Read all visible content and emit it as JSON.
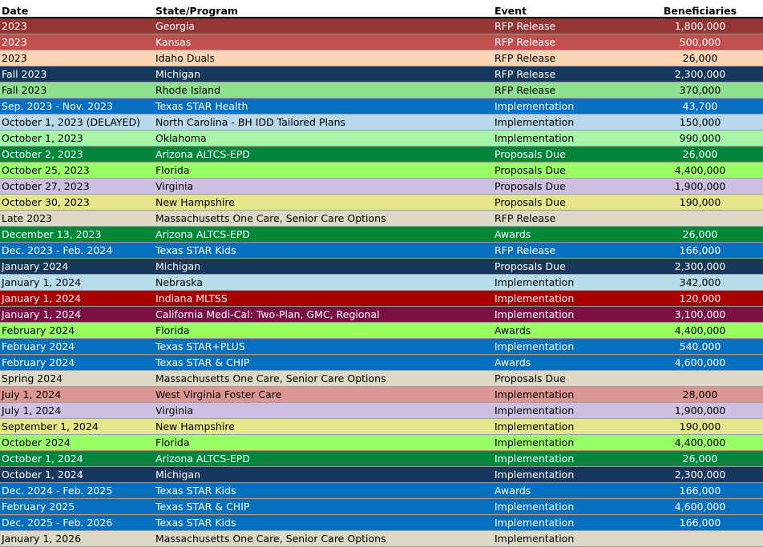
{
  "headers": {
    "date": "Date",
    "state": "State/Program",
    "event": "Event",
    "beneficiaries": "Beneficiaries"
  },
  "rows": [
    {
      "date": "2023",
      "state": "Georgia",
      "event": "RFP Release",
      "ben": "1,800,000",
      "bg": "#963634",
      "fg": "#ffffff"
    },
    {
      "date": "2023",
      "state": "Kansas",
      "event": "RFP Release",
      "ben": "500,000",
      "bg": "#c0504d",
      "fg": "#ffffff"
    },
    {
      "date": "2023",
      "state": "Idaho Duals",
      "event": "RFP Release",
      "ben": "26,000",
      "bg": "#fcd5b4",
      "fg": "#000000"
    },
    {
      "date": "Fall 2023",
      "state": "Michigan",
      "event": "RFP Release",
      "ben": "2,300,000",
      "bg": "#17375d",
      "fg": "#ffffff"
    },
    {
      "date": "Fall 2023",
      "state": "Rhode Island",
      "event": "RFP Release",
      "ben": "370,000",
      "bg": "#8ee08e",
      "fg": "#000000"
    },
    {
      "date": "Sep. 2023 - Nov. 2023",
      "state": "Texas STAR Health",
      "event": "Implementation",
      "ben": "43,700",
      "bg": "#0570c0",
      "fg": "#ffffff"
    },
    {
      "date": "October 1, 2023 (DELAYED)",
      "state": "North Carolina -  BH IDD Tailored Plans",
      "event": "Implementation",
      "ben": "150,000",
      "bg": "#b7d7ea",
      "fg": "#000000"
    },
    {
      "date": "October 1, 2023",
      "state": "Oklahoma",
      "event": "Implementation",
      "ben": "990,000",
      "bg": "#a8f5a8",
      "fg": "#000000"
    },
    {
      "date": "October 2, 2023",
      "state": "Arizona ALTCS-EPD",
      "event": "Proposals Due",
      "ben": "26,000",
      "bg": "#00873c",
      "fg": "#ffffff"
    },
    {
      "date": "October 25, 2023",
      "state": "Florida",
      "event": "Proposals Due",
      "ben": "4,400,000",
      "bg": "#99ff66",
      "fg": "#000000"
    },
    {
      "date": "October 27, 2023",
      "state": "Virginia",
      "event": "Proposals Due",
      "ben": "1,900,000",
      "bg": "#cdbfe0",
      "fg": "#000000"
    },
    {
      "date": "October 30, 2023",
      "state": "New Hampshire",
      "event": "Proposals Due",
      "ben": "190,000",
      "bg": "#e6e68a",
      "fg": "#000000"
    },
    {
      "date": "Late 2023",
      "state": "Massachusetts One Care, Senior Care Options",
      "event": "RFP Release",
      "ben": "",
      "bg": "#ddd9c4",
      "fg": "#000000"
    },
    {
      "date": "December 13, 2023",
      "state": "Arizona ALTCS-EPD",
      "event": "Awards",
      "ben": "26,000",
      "bg": "#00873c",
      "fg": "#ffffff"
    },
    {
      "date": "Dec. 2023 - Feb. 2024",
      "state": "Texas STAR Kids",
      "event": "RFP Release",
      "ben": "166,000",
      "bg": "#0570c0",
      "fg": "#ffffff"
    },
    {
      "date": "January 2024",
      "state": "Michigan",
      "event": "Proposals Due",
      "ben": "2,300,000",
      "bg": "#17375d",
      "fg": "#ffffff"
    },
    {
      "date": "January 1, 2024",
      "state": "Nebraska",
      "event": "Implementation",
      "ben": "342,000",
      "bg": "#b7deea",
      "fg": "#000000"
    },
    {
      "date": "January 1, 2024",
      "state": "Indiana MLTSS",
      "event": "Implementation",
      "ben": "120,000",
      "bg": "#a50000",
      "fg": "#ffffff"
    },
    {
      "date": "January 1, 2024",
      "state": "California Medi-Cal: Two-Plan, GMC, Regional",
      "event": "Implementation",
      "ben": "3,100,000",
      "bg": "#7b1045",
      "fg": "#ffffff"
    },
    {
      "date": "February 2024",
      "state": "Florida",
      "event": "Awards",
      "ben": "4,400,000",
      "bg": "#99ff66",
      "fg": "#000000"
    },
    {
      "date": "February 2024",
      "state": "Texas STAR+PLUS",
      "event": "Implementation",
      "ben": "540,000",
      "bg": "#0570c0",
      "fg": "#ffffff"
    },
    {
      "date": "February 2024",
      "state": "Texas STAR & CHIP",
      "event": "Awards",
      "ben": "4,600,000",
      "bg": "#0570c0",
      "fg": "#ffffff"
    },
    {
      "date": "Spring 2024",
      "state": "Massachusetts One Care, Senior Care Options",
      "event": "Proposals Due",
      "ben": "",
      "bg": "#ddd9c4",
      "fg": "#000000"
    },
    {
      "date": "July 1, 2024",
      "state": "West Virginia Foster Care",
      "event": "Implementation",
      "ben": "28,000",
      "bg": "#da9694",
      "fg": "#000000"
    },
    {
      "date": "July 1, 2024",
      "state": "Virginia",
      "event": "Implementation",
      "ben": "1,900,000",
      "bg": "#cdbfe0",
      "fg": "#000000"
    },
    {
      "date": "September 1, 2024",
      "state": "New Hampshire",
      "event": "Implementation",
      "ben": "190,000",
      "bg": "#e6e68a",
      "fg": "#000000"
    },
    {
      "date": "October 2024",
      "state": "Florida",
      "event": "Implementation",
      "ben": "4,400,000",
      "bg": "#99ff66",
      "fg": "#000000"
    },
    {
      "date": "October 1, 2024",
      "state": "Arizona ALTCS-EPD",
      "event": "Implementation",
      "ben": "26,000",
      "bg": "#00873c",
      "fg": "#ffffff"
    },
    {
      "date": "October 1, 2024",
      "state": "Michigan",
      "event": "Implementation",
      "ben": "2,300,000",
      "bg": "#17375d",
      "fg": "#ffffff"
    },
    {
      "date": "Dec. 2024 - Feb. 2025",
      "state": "Texas STAR Kids",
      "event": "Awards",
      "ben": "166,000",
      "bg": "#0570c0",
      "fg": "#ffffff"
    },
    {
      "date": "February 2025",
      "state": "Texas STAR & CHIP",
      "event": "Implementation",
      "ben": "4,600,000",
      "bg": "#0570c0",
      "fg": "#ffffff"
    },
    {
      "date": "Dec. 2025 - Feb. 2026",
      "state": "Texas STAR Kids",
      "event": "Implementation",
      "ben": "166,000",
      "bg": "#0570c0",
      "fg": "#ffffff"
    },
    {
      "date": "January 1, 2026",
      "state": "Massachusetts One Care, Senior Care Options",
      "event": "Implementation",
      "ben": "",
      "bg": "#ddd9c4",
      "fg": "#000000"
    }
  ]
}
